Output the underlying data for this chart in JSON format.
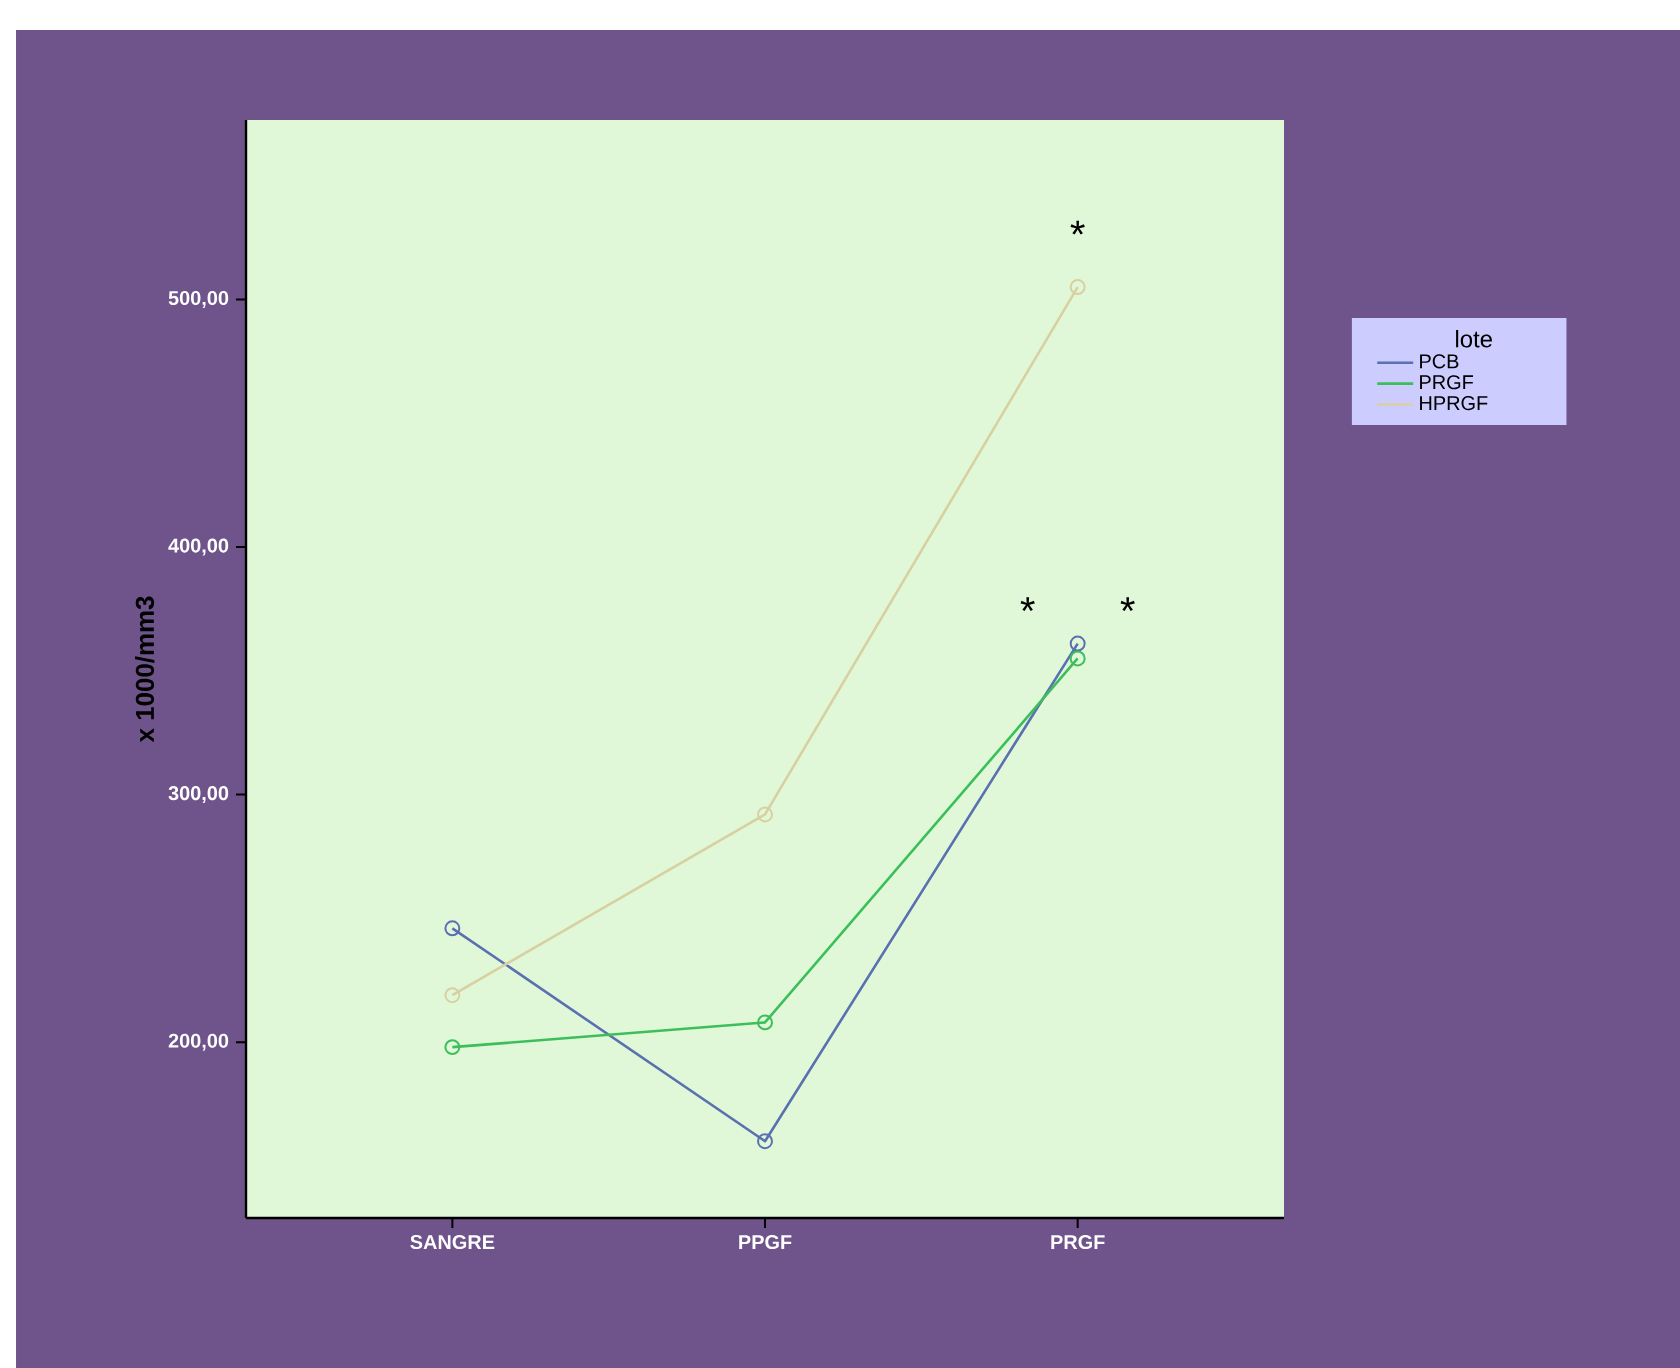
{
  "chart_data": {
    "type": "line",
    "ylabel": "x 1000/mm3",
    "legend_title": "lote",
    "categories": [
      "SANGRE",
      "PPGF",
      "PRGF"
    ],
    "series": [
      {
        "name": "PCB",
        "color": "#5a70b0",
        "values": [
          246,
          160,
          361
        ]
      },
      {
        "name": "PRGF",
        "color": "#3cbf5a",
        "values": [
          198,
          208,
          355
        ]
      },
      {
        "name": "HPRGF",
        "color": "#d8d0a0",
        "values": [
          219,
          292,
          505
        ]
      }
    ],
    "ylim": [
      129,
      572.5
    ],
    "yticks": [
      {
        "value": 200,
        "label": "200,00"
      },
      {
        "value": 300,
        "label": "300,00"
      },
      {
        "value": 400,
        "label": "400,00"
      },
      {
        "value": 500,
        "label": "500,00"
      }
    ],
    "annotations": [
      {
        "text": "*",
        "x": "PRGF",
        "y": 505
      },
      {
        "text": "*",
        "x": "PRGF",
        "y": 361
      },
      {
        "text": "*",
        "x": "PRGF",
        "y": 361
      }
    ],
    "grid": false,
    "legend": "top right",
    "marker": "circle",
    "line_style": "solid"
  }
}
